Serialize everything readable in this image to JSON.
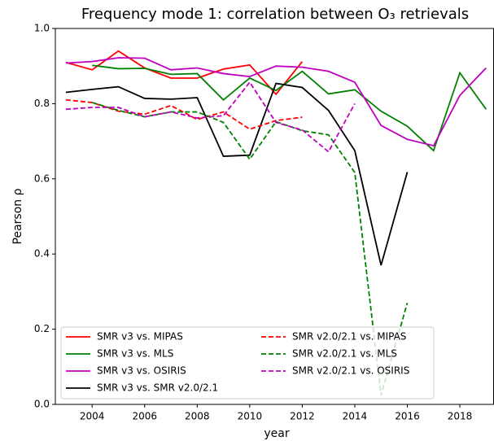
{
  "chart_data": {
    "type": "line",
    "title": "Frequency mode 1: correlation between O₃ retrievals",
    "xlabel": "year",
    "ylabel": "Pearson ρ",
    "x": [
      2003,
      2004,
      2005,
      2006,
      2007,
      2008,
      2009,
      2010,
      2011,
      2012,
      2013,
      2014,
      2015,
      2016,
      2017,
      2018,
      2019
    ],
    "xlim": [
      2002.6,
      2019.3
    ],
    "xticks": [
      2004,
      2006,
      2008,
      2010,
      2012,
      2014,
      2016,
      2018
    ],
    "ylim": [
      0,
      1
    ],
    "yticks": [
      {
        "value": 0,
        "label": "0.0"
      },
      {
        "value": 0.2,
        "label": "0.2"
      },
      {
        "value": 0.4,
        "label": "0.4"
      },
      {
        "value": 0.6,
        "label": "0.6"
      },
      {
        "value": 0.8,
        "label": "0.8"
      },
      {
        "value": 1,
        "label": "1.0"
      }
    ],
    "legend": "lower left",
    "legend_columns": 2,
    "series": [
      {
        "name": "SMR v3 vs. MIPAS",
        "color": "#ff0000",
        "linestyle": "solid",
        "values": [
          0.91,
          0.89,
          0.94,
          0.895,
          0.868,
          0.868,
          0.892,
          0.903,
          0.825,
          0.912,
          null,
          null,
          null,
          null,
          null,
          null,
          null
        ]
      },
      {
        "name": "SMR v3 vs. MLS",
        "color": "#008000",
        "linestyle": "solid",
        "values": [
          null,
          0.902,
          0.893,
          0.894,
          0.878,
          0.88,
          0.81,
          0.868,
          0.835,
          0.886,
          0.826,
          0.837,
          0.78,
          0.74,
          0.675,
          0.882,
          0.785
        ]
      },
      {
        "name": "SMR v3 vs. OSIRIS",
        "color": "#bf00bf",
        "linestyle": "solid",
        "values": [
          0.908,
          0.912,
          0.922,
          0.921,
          0.89,
          0.895,
          0.88,
          0.872,
          0.9,
          0.897,
          0.886,
          0.857,
          0.742,
          0.705,
          0.688,
          0.822,
          0.895
        ]
      },
      {
        "name": "SMR v3 vs. SMR v2.0/2.1",
        "color": "#000000",
        "linestyle": "solid",
        "values": [
          0.83,
          0.838,
          0.845,
          0.814,
          0.812,
          0.816,
          0.66,
          0.663,
          0.854,
          0.843,
          0.782,
          0.675,
          0.37,
          0.618,
          null,
          null,
          null
        ]
      },
      {
        "name": "SMR v2.0/2.1 vs. MIPAS",
        "color": "#ff0000",
        "linestyle": "dashed",
        "values": [
          0.81,
          0.803,
          0.78,
          0.772,
          0.795,
          0.758,
          0.778,
          0.732,
          0.755,
          0.764,
          null,
          null,
          null,
          null,
          null,
          null,
          null
        ]
      },
      {
        "name": "SMR v2.0/2.1 vs. MLS",
        "color": "#008000",
        "linestyle": "dashed",
        "values": [
          null,
          0.803,
          0.782,
          0.765,
          0.778,
          0.778,
          0.75,
          0.652,
          0.752,
          0.728,
          0.717,
          0.617,
          0.025,
          0.27,
          null,
          null,
          null
        ]
      },
      {
        "name": "SMR v2.0/2.1 vs. OSIRIS",
        "color": "#bf00bf",
        "linestyle": "dashed",
        "values": [
          0.785,
          0.79,
          0.79,
          0.765,
          0.778,
          0.762,
          0.768,
          0.857,
          0.75,
          0.73,
          0.672,
          0.8,
          null,
          null,
          null,
          null,
          null
        ]
      }
    ]
  }
}
